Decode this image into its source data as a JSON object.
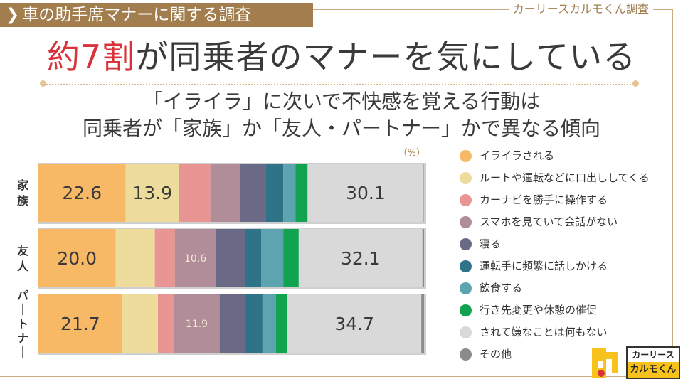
{
  "header": {
    "tag_text": "車の助手席マナーに関する調査",
    "brand_caption": "カーリースカルモくん調査"
  },
  "headline": {
    "accent": "約7割",
    "rest": "が同乗者のマナーを気にしている"
  },
  "subtitle": {
    "line1": "「イライラ」に次いで不快感を覚える行動は",
    "line2": "同乗者が「家族」か「友人・パートナー」かで異なる傾向"
  },
  "logo": {
    "top": "カーリース",
    "bottom": "カルモくん"
  },
  "colors": {
    "frame": "#c9ab7f",
    "header_bg": "#a27d4d",
    "accent_red": "#d8323a",
    "logo_yellow": "#f7c21b"
  },
  "chart_data": {
    "type": "bar",
    "orientation": "horizontal",
    "stacked": true,
    "normalized": true,
    "unit_label": "（%）",
    "categories": [
      "家族",
      "友人",
      "パートナー"
    ],
    "series": [
      {
        "name": "イライラされる",
        "color": "#f7b966",
        "values": [
          22.6,
          20.0,
          21.7
        ]
      },
      {
        "name": "ルートや運転などに口出ししてくる",
        "color": "#eddc9c",
        "values": [
          13.9,
          10.2,
          9.3
        ]
      },
      {
        "name": "カーナビを勝手に操作する",
        "color": "#e89593",
        "values": [
          8.1,
          5.2,
          4.1
        ]
      },
      {
        "name": "スマホを見ていて会話がない",
        "color": "#b08d98",
        "values": [
          7.8,
          10.6,
          11.9
        ]
      },
      {
        "name": "寝る",
        "color": "#6a6a86",
        "values": [
          6.5,
          7.6,
          6.7
        ]
      },
      {
        "name": "運転手に頻繁に話しかける",
        "color": "#2f7389",
        "values": [
          4.6,
          4.2,
          4.4
        ]
      },
      {
        "name": "飲食する",
        "color": "#5ca5b0",
        "values": [
          3.2,
          5.7,
          3.5
        ]
      },
      {
        "name": "行き先変更や休憩の催促",
        "color": "#11a350",
        "values": [
          3.1,
          4.0,
          3.0
        ]
      },
      {
        "name": "されて嫌なことは何もない",
        "color": "#d9d9d9",
        "values": [
          30.1,
          32.1,
          34.7
        ]
      },
      {
        "name": "その他",
        "color": "#8b8b8b",
        "values": [
          0.1,
          0.4,
          0.7
        ]
      }
    ],
    "data_labels": [
      {
        "category": "家族",
        "series": "イライラされる",
        "text": "22.6",
        "style": "big"
      },
      {
        "category": "家族",
        "series": "ルートや運転などに口出ししてくる",
        "text": "13.9",
        "style": "big"
      },
      {
        "category": "家族",
        "series": "されて嫌なことは何もない",
        "text": "30.1",
        "style": "big"
      },
      {
        "category": "友人",
        "series": "イライラされる",
        "text": "20.0",
        "style": "big"
      },
      {
        "category": "友人",
        "series": "スマホを見ていて会話がない",
        "text": "10.6",
        "style": "small"
      },
      {
        "category": "友人",
        "series": "されて嫌なことは何もない",
        "text": "32.1",
        "style": "big"
      },
      {
        "category": "パートナー",
        "series": "イライラされる",
        "text": "21.7",
        "style": "big"
      },
      {
        "category": "パートナー",
        "series": "スマホを見ていて会話がない",
        "text": "11.9",
        "style": "small"
      },
      {
        "category": "パートナー",
        "series": "されて嫌なことは何もない",
        "text": "34.7",
        "style": "big"
      }
    ]
  }
}
